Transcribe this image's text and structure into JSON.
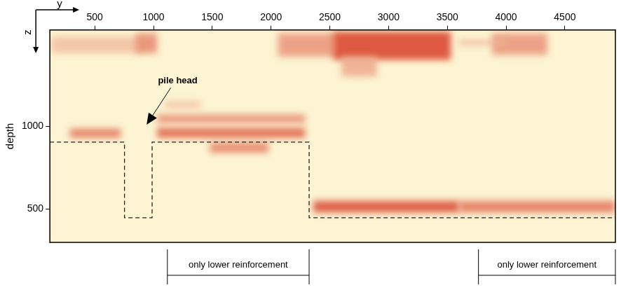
{
  "chart_data": {
    "type": "heatmap",
    "xlabel": "y",
    "zlabel": "z",
    "ylabel": "depth",
    "xlim": [
      118,
      4930
    ],
    "xticks": [
      500,
      1000,
      1500,
      2000,
      2500,
      3000,
      3500,
      4000,
      4500
    ],
    "ylim": [
      300,
      1580
    ],
    "yticks": [
      500,
      1000
    ],
    "colorscale": [
      "#fcf4d2",
      "#d42a14"
    ],
    "reflectors": [
      {
        "y": [
          130,
          900
        ],
        "depth": [
          1440,
          1540
        ],
        "intensity": 0.25
      },
      {
        "y": [
          850,
          1030
        ],
        "depth": [
          1440,
          1560
        ],
        "intensity": 0.5
      },
      {
        "y": [
          2060,
          2550
        ],
        "depth": [
          1420,
          1560
        ],
        "intensity": 0.45
      },
      {
        "y": [
          2530,
          3530
        ],
        "depth": [
          1400,
          1570
        ],
        "intensity": 0.85
      },
      {
        "y": [
          2600,
          2900
        ],
        "depth": [
          1300,
          1420
        ],
        "intensity": 0.35
      },
      {
        "y": [
          3880,
          4350
        ],
        "depth": [
          1430,
          1560
        ],
        "intensity": 0.45
      },
      {
        "y": [
          3600,
          4000
        ],
        "depth": [
          1490,
          1520
        ],
        "intensity": 0.3
      },
      {
        "y": [
          290,
          720
        ],
        "depth": [
          930,
          985
        ],
        "intensity": 0.6
      },
      {
        "y": [
          1030,
          2290
        ],
        "depth": [
          1020,
          1070
        ],
        "intensity": 0.5
      },
      {
        "y": [
          1030,
          2290
        ],
        "depth": [
          930,
          990
        ],
        "intensity": 0.7
      },
      {
        "y": [
          1480,
          1980
        ],
        "depth": [
          840,
          900
        ],
        "intensity": 0.55
      },
      {
        "y": [
          1100,
          1400
        ],
        "depth": [
          1110,
          1150
        ],
        "intensity": 0.25
      },
      {
        "y": [
          2360,
          3600
        ],
        "depth": [
          480,
          550
        ],
        "intensity": 0.8
      },
      {
        "y": [
          3600,
          4930
        ],
        "depth": [
          480,
          550
        ],
        "intensity": 0.6
      }
    ],
    "interface": {
      "x": [
        118,
        753,
        753,
        988,
        988,
        2324,
        2324,
        4930
      ],
      "depth": [
        904,
        904,
        448,
        448,
        904,
        904,
        448,
        448
      ],
      "line_style": "dashed",
      "color": "#222222"
    },
    "annotations": [
      {
        "text": "pile head",
        "x": 1206,
        "depth": 1248,
        "arrow_to": [
          941,
          1009
        ]
      }
    ],
    "spans": [
      {
        "label": "only lower reinforcement",
        "from": 1118,
        "to": 2324
      },
      {
        "label": "only lower reinforcement",
        "from": 3765,
        "to": 4930
      }
    ]
  }
}
